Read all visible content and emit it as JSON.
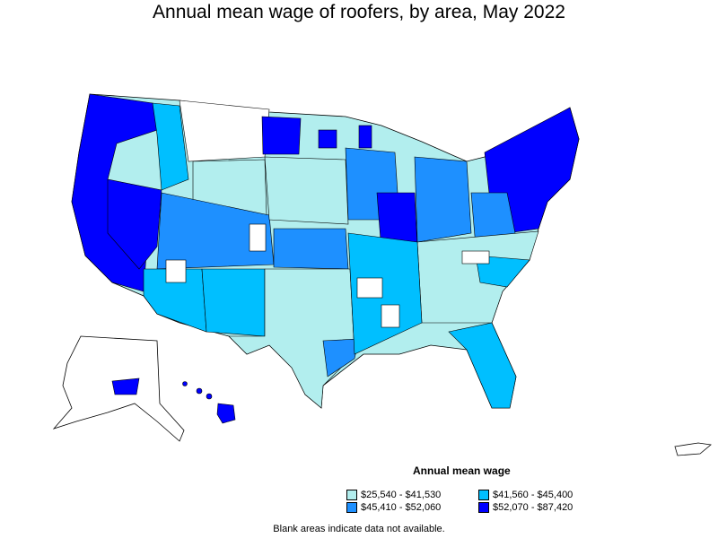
{
  "title": "Annual mean wage of roofers, by area, May 2022",
  "legend": {
    "title": "Annual mean wage",
    "items": [
      {
        "label": "$25,540 - $41,530",
        "color": "#b2eeee"
      },
      {
        "label": "$41,560 - $45,400",
        "color": "#00bfff"
      },
      {
        "label": "$45,410 - $52,060",
        "color": "#1e90ff"
      },
      {
        "label": "$52,070 - $87,420",
        "color": "#0000ff"
      }
    ]
  },
  "note": "Blank areas indicate data not available.",
  "colors": {
    "outline": "#000000",
    "no_data": "#ffffff",
    "tier1": "#b2eeee",
    "tier2": "#00bfff",
    "tier3": "#1e90ff",
    "tier4": "#0000ff"
  }
}
